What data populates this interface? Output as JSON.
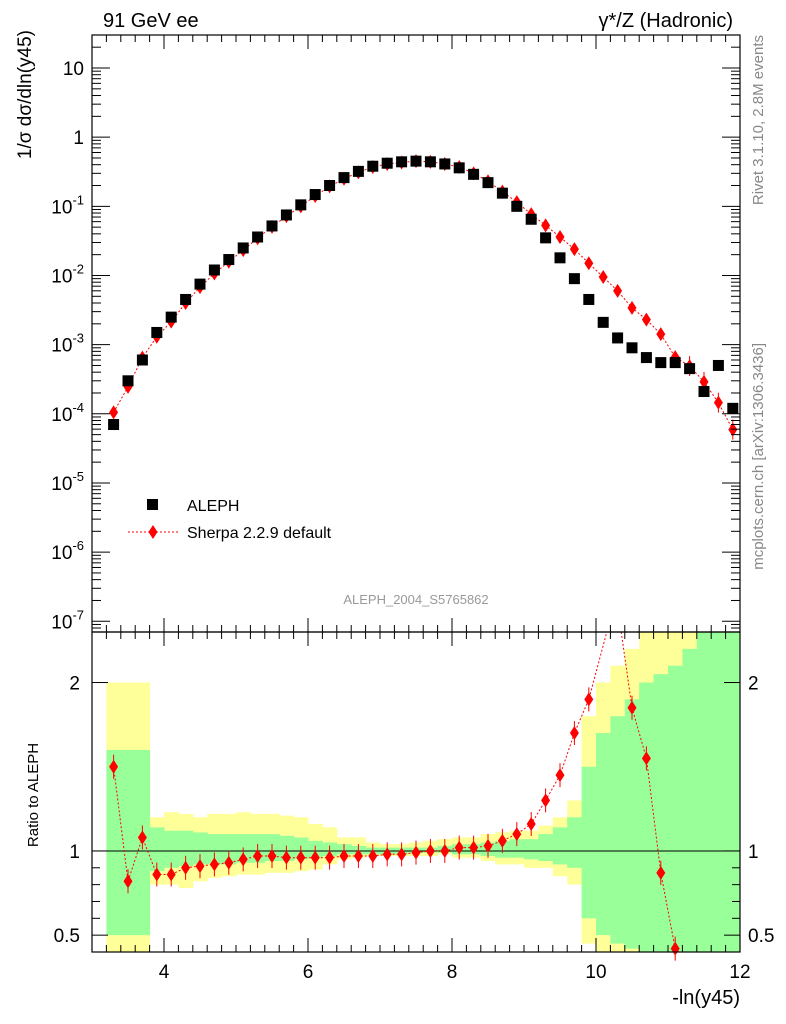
{
  "header": {
    "left_title": "91 GeV ee",
    "right_title": "γ*/Z (Hadronic)"
  },
  "side_text": {
    "rivet": "Rivet 3.1.10,  2.8M events",
    "mcplots": "mcplots.cern.ch [arXiv:1306.3436]"
  },
  "analysis_id": "ALEPH_2004_S5765862",
  "chart_data": [
    {
      "type": "scatter",
      "yscale": "log",
      "ylabel": "1/σ dσ/dln(y45)",
      "xlim": [
        3.0,
        12.0
      ],
      "ylim": [
        7e-08,
        30
      ],
      "y_ticks": [
        {
          "value": 10,
          "label": "10"
        },
        {
          "value": 1,
          "label": "1"
        },
        {
          "value": 0.1,
          "label": "10-1"
        },
        {
          "value": 0.01,
          "label": "10-2"
        },
        {
          "value": 0.001,
          "label": "10-3"
        },
        {
          "value": 0.0001,
          "label": "10-4"
        },
        {
          "value": 1e-05,
          "label": "10-5"
        },
        {
          "value": 1e-06,
          "label": "10-6"
        },
        {
          "value": 1e-07,
          "label": "10-7"
        }
      ],
      "legend_position": "lower-left",
      "series": [
        {
          "name": "ALEPH",
          "color": "#000000",
          "marker": "square",
          "x": [
            3.3,
            3.5,
            3.7,
            3.9,
            4.1,
            4.3,
            4.5,
            4.7,
            4.9,
            5.1,
            5.3,
            5.5,
            5.7,
            5.9,
            6.1,
            6.3,
            6.5,
            6.7,
            6.9,
            7.1,
            7.3,
            7.5,
            7.7,
            7.9,
            8.1,
            8.3,
            8.5,
            8.7,
            8.9,
            9.1,
            9.3,
            9.5,
            9.7,
            9.9,
            10.1,
            10.3,
            10.5,
            10.7,
            10.9,
            11.1,
            11.3,
            11.5,
            11.7,
            11.9
          ],
          "y": [
            7e-05,
            0.0003,
            0.0006,
            0.0015,
            0.0025,
            0.0045,
            0.0075,
            0.012,
            0.017,
            0.025,
            0.036,
            0.052,
            0.075,
            0.105,
            0.148,
            0.2,
            0.26,
            0.32,
            0.38,
            0.42,
            0.44,
            0.45,
            0.44,
            0.41,
            0.36,
            0.29,
            0.22,
            0.155,
            0.1,
            0.065,
            0.035,
            0.018,
            0.009,
            0.0045,
            0.0021,
            0.00125,
            0.0009,
            0.00065,
            0.00055,
            0.00055,
            0.00045,
            0.00021,
            0.0005,
            0.00012
          ]
        },
        {
          "name": "Sherpa 2.2.9 default",
          "color": "#ff0000",
          "marker": "diamond",
          "x": [
            3.3,
            3.5,
            3.7,
            3.9,
            4.1,
            4.3,
            4.5,
            4.7,
            4.9,
            5.1,
            5.3,
            5.5,
            5.7,
            5.9,
            6.1,
            6.3,
            6.5,
            6.7,
            6.9,
            7.1,
            7.3,
            7.5,
            7.7,
            7.9,
            8.1,
            8.3,
            8.5,
            8.7,
            8.9,
            9.1,
            9.3,
            9.5,
            9.7,
            9.9,
            10.1,
            10.3,
            10.5,
            10.7,
            10.9,
            11.1,
            11.3,
            11.5,
            11.7,
            11.9
          ],
          "y": [
            0.000105,
            0.000245,
            0.00065,
            0.0013,
            0.00215,
            0.004,
            0.0068,
            0.0107,
            0.0158,
            0.0233,
            0.0346,
            0.0505,
            0.072,
            0.1,
            0.141,
            0.194,
            0.25,
            0.31,
            0.37,
            0.41,
            0.43,
            0.45,
            0.44,
            0.41,
            0.37,
            0.3,
            0.23,
            0.163,
            0.115,
            0.077,
            0.053,
            0.036,
            0.024,
            0.015,
            0.0095,
            0.006,
            0.0034,
            0.0023,
            0.00142,
            0.00066,
            0.00049,
            0.00029,
            0.000145,
            5.9e-05
          ]
        }
      ]
    },
    {
      "type": "area",
      "ylabel": "Ratio to ALEPH",
      "xlabel": "-ln(y45)",
      "xlim": [
        3.0,
        12.0
      ],
      "ylim": [
        0.4,
        2.3
      ],
      "x_ticks": [
        4,
        6,
        8,
        10,
        12
      ],
      "y_ticks": [
        0.5,
        1,
        2
      ],
      "reference_line": 1.0,
      "bins": {
        "edges": [
          3.2,
          3.8,
          4.0,
          4.2,
          4.4,
          4.6,
          4.8,
          5.0,
          5.2,
          5.4,
          5.6,
          5.8,
          6.0,
          6.2,
          6.4,
          6.6,
          6.8,
          7.0,
          7.2,
          7.4,
          7.6,
          7.8,
          8.0,
          8.2,
          8.4,
          8.6,
          8.8,
          9.0,
          9.2,
          9.4,
          9.6,
          9.8,
          10.0,
          10.2,
          10.4,
          10.6,
          10.8,
          11.0,
          11.2,
          11.4,
          11.6,
          11.8,
          12.0
        ],
        "stat_err_band": {
          "name": "stat. uncertainty",
          "color": "#99ff99",
          "low": [
            0.5,
            0.88,
            0.9,
            0.91,
            0.92,
            0.92,
            0.92,
            0.93,
            0.93,
            0.94,
            0.94,
            0.95,
            0.96,
            0.97,
            0.98,
            0.98,
            0.98,
            0.98,
            0.98,
            0.99,
            0.99,
            0.99,
            0.98,
            0.98,
            0.97,
            0.96,
            0.96,
            0.95,
            0.94,
            0.92,
            0.9,
            0.6,
            0.5,
            0.45,
            0.42,
            0.4,
            0.4,
            0.4,
            0.4,
            0.4,
            0.4,
            0.4
          ],
          "high": [
            1.6,
            1.14,
            1.12,
            1.12,
            1.11,
            1.1,
            1.1,
            1.1,
            1.1,
            1.1,
            1.09,
            1.08,
            1.06,
            1.05,
            1.04,
            1.03,
            1.02,
            1.02,
            1.02,
            1.02,
            1.02,
            1.03,
            1.04,
            1.04,
            1.05,
            1.06,
            1.07,
            1.07,
            1.1,
            1.14,
            1.2,
            1.5,
            1.7,
            1.8,
            1.9,
            2.0,
            2.05,
            2.1,
            2.2,
            2.3,
            2.3,
            2.3
          ]
        },
        "total_err_band": {
          "name": "total uncertainty",
          "color": "#ffff99",
          "low": [
            0.4,
            0.8,
            0.8,
            0.78,
            0.82,
            0.84,
            0.85,
            0.86,
            0.86,
            0.87,
            0.87,
            0.88,
            0.89,
            0.92,
            0.95,
            0.96,
            0.97,
            0.97,
            0.97,
            0.97,
            0.97,
            0.98,
            0.96,
            0.96,
            0.94,
            0.92,
            0.92,
            0.9,
            0.9,
            0.85,
            0.8,
            0.45,
            0.4,
            0.4,
            0.4,
            0.4,
            0.4,
            0.4,
            0.4,
            0.4,
            0.4,
            0.4
          ],
          "high": [
            2.0,
            1.2,
            1.23,
            1.22,
            1.2,
            1.22,
            1.22,
            1.23,
            1.22,
            1.22,
            1.21,
            1.2,
            1.16,
            1.14,
            1.08,
            1.08,
            1.05,
            1.04,
            1.04,
            1.05,
            1.06,
            1.07,
            1.08,
            1.08,
            1.1,
            1.11,
            1.12,
            1.12,
            1.15,
            1.2,
            1.3,
            1.8,
            2.0,
            2.1,
            2.2,
            2.3,
            2.3,
            2.3,
            2.3,
            2.3,
            2.3,
            2.3
          ]
        }
      },
      "series": [
        {
          "name": "Sherpa 2.2.9 default",
          "color": "#ff0000",
          "marker": "diamond",
          "x": [
            3.3,
            3.5,
            3.7,
            3.9,
            4.1,
            4.3,
            4.5,
            4.7,
            4.9,
            5.1,
            5.3,
            5.5,
            5.7,
            5.9,
            6.1,
            6.3,
            6.5,
            6.7,
            6.9,
            7.1,
            7.3,
            7.5,
            7.7,
            7.9,
            8.1,
            8.3,
            8.5,
            8.7,
            8.9,
            9.1,
            9.3,
            9.5,
            9.7,
            9.9,
            10.5,
            10.7,
            10.9,
            11.1
          ],
          "y": [
            1.5,
            0.82,
            1.08,
            0.86,
            0.86,
            0.9,
            0.91,
            0.92,
            0.93,
            0.95,
            0.97,
            0.97,
            0.96,
            0.96,
            0.96,
            0.96,
            0.97,
            0.97,
            0.97,
            0.98,
            0.98,
            0.99,
            1.0,
            1.0,
            1.02,
            1.02,
            1.03,
            1.06,
            1.1,
            1.16,
            1.3,
            1.45,
            1.7,
            1.9,
            1.85,
            1.55,
            0.87,
            0.42
          ]
        }
      ]
    }
  ]
}
